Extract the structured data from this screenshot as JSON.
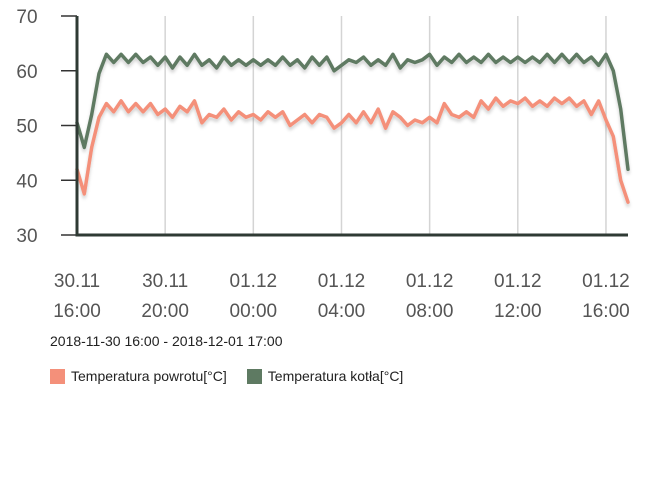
{
  "chart_data": {
    "type": "line",
    "title": "",
    "xlabel": "",
    "ylabel": "",
    "ylim": [
      30,
      70
    ],
    "y_ticks": [
      30,
      40,
      50,
      60,
      70
    ],
    "x_range": [
      "2018-11-30 16:00",
      "2018-12-01 17:00"
    ],
    "x_ticks": [
      {
        "at": "2018-11-30 16:00",
        "line1": "30.11",
        "line2": "16:00"
      },
      {
        "at": "2018-11-30 20:00",
        "line1": "30.11",
        "line2": "20:00"
      },
      {
        "at": "2018-12-01 00:00",
        "line1": "01.12",
        "line2": "00:00"
      },
      {
        "at": "2018-12-01 04:00",
        "line1": "01.12",
        "line2": "04:00"
      },
      {
        "at": "2018-12-01 08:00",
        "line1": "01.12",
        "line2": "08:00"
      },
      {
        "at": "2018-12-01 12:00",
        "line1": "01.12",
        "line2": "12:00"
      },
      {
        "at": "2018-12-01 16:00",
        "line1": "01.12",
        "line2": "16:00"
      }
    ],
    "grid": "vertical",
    "legend_position": "bottom-left",
    "series": [
      {
        "name": "Temperatura powrotu[°C]",
        "color": "#f4907a",
        "points": [
          [
            "2018-11-30 16:00",
            42
          ],
          [
            "2018-11-30 16:20",
            37.5
          ],
          [
            "2018-11-30 16:40",
            46
          ],
          [
            "2018-11-30 17:00",
            51.5
          ],
          [
            "2018-11-30 17:20",
            54
          ],
          [
            "2018-11-30 17:40",
            52.5
          ],
          [
            "2018-11-30 18:00",
            54.5
          ],
          [
            "2018-11-30 18:20",
            52.5
          ],
          [
            "2018-11-30 18:40",
            54
          ],
          [
            "2018-11-30 19:00",
            52.5
          ],
          [
            "2018-11-30 19:20",
            54
          ],
          [
            "2018-11-30 19:40",
            52
          ],
          [
            "2018-11-30 20:00",
            53
          ],
          [
            "2018-11-30 20:20",
            51.5
          ],
          [
            "2018-11-30 20:40",
            53.5
          ],
          [
            "2018-11-30 21:00",
            52.5
          ],
          [
            "2018-11-30 21:20",
            54.5
          ],
          [
            "2018-11-30 21:40",
            50.5
          ],
          [
            "2018-11-30 22:00",
            52
          ],
          [
            "2018-11-30 22:20",
            51.5
          ],
          [
            "2018-11-30 22:40",
            53
          ],
          [
            "2018-11-30 23:00",
            51
          ],
          [
            "2018-11-30 23:20",
            52.5
          ],
          [
            "2018-11-30 23:40",
            51.5
          ],
          [
            "2018-12-01 00:00",
            52
          ],
          [
            "2018-12-01 00:20",
            51
          ],
          [
            "2018-12-01 00:40",
            52.5
          ],
          [
            "2018-12-01 01:00",
            51.5
          ],
          [
            "2018-12-01 01:20",
            52.5
          ],
          [
            "2018-12-01 01:40",
            50
          ],
          [
            "2018-12-01 02:00",
            51
          ],
          [
            "2018-12-01 02:20",
            52
          ],
          [
            "2018-12-01 02:40",
            50.5
          ],
          [
            "2018-12-01 03:00",
            52
          ],
          [
            "2018-12-01 03:20",
            51.5
          ],
          [
            "2018-12-01 03:40",
            49.5
          ],
          [
            "2018-12-01 04:00",
            50.5
          ],
          [
            "2018-12-01 04:20",
            52
          ],
          [
            "2018-12-01 04:40",
            50.5
          ],
          [
            "2018-12-01 05:00",
            52.5
          ],
          [
            "2018-12-01 05:20",
            50.5
          ],
          [
            "2018-12-01 05:40",
            53
          ],
          [
            "2018-12-01 06:00",
            49.5
          ],
          [
            "2018-12-01 06:20",
            52.5
          ],
          [
            "2018-12-01 06:40",
            51.5
          ],
          [
            "2018-12-01 07:00",
            50
          ],
          [
            "2018-12-01 07:20",
            51
          ],
          [
            "2018-12-01 07:40",
            50.5
          ],
          [
            "2018-12-01 08:00",
            51.5
          ],
          [
            "2018-12-01 08:20",
            50.5
          ],
          [
            "2018-12-01 08:40",
            54
          ],
          [
            "2018-12-01 09:00",
            52
          ],
          [
            "2018-12-01 09:20",
            51.5
          ],
          [
            "2018-12-01 09:40",
            52.5
          ],
          [
            "2018-12-01 10:00",
            51.5
          ],
          [
            "2018-12-01 10:20",
            54.5
          ],
          [
            "2018-12-01 10:40",
            53
          ],
          [
            "2018-12-01 11:00",
            55
          ],
          [
            "2018-12-01 11:20",
            53.5
          ],
          [
            "2018-12-01 11:40",
            54.5
          ],
          [
            "2018-12-01 12:00",
            54
          ],
          [
            "2018-12-01 12:20",
            55
          ],
          [
            "2018-12-01 12:40",
            53.5
          ],
          [
            "2018-12-01 13:00",
            54.5
          ],
          [
            "2018-12-01 13:20",
            53.5
          ],
          [
            "2018-12-01 13:40",
            55
          ],
          [
            "2018-12-01 14:00",
            54
          ],
          [
            "2018-12-01 14:20",
            55
          ],
          [
            "2018-12-01 14:40",
            53.5
          ],
          [
            "2018-12-01 15:00",
            54.5
          ],
          [
            "2018-12-01 15:20",
            52
          ],
          [
            "2018-12-01 15:40",
            54.5
          ],
          [
            "2018-12-01 16:00",
            51
          ],
          [
            "2018-12-01 16:20",
            48
          ],
          [
            "2018-12-01 16:40",
            40
          ],
          [
            "2018-12-01 17:00",
            36
          ]
        ]
      },
      {
        "name": "Temperatura kotła[°C]",
        "color": "#5e7a62",
        "points": [
          [
            "2018-11-30 16:00",
            50.5
          ],
          [
            "2018-11-30 16:20",
            46
          ],
          [
            "2018-11-30 16:40",
            52
          ],
          [
            "2018-11-30 17:00",
            59.5
          ],
          [
            "2018-11-30 17:20",
            63
          ],
          [
            "2018-11-30 17:40",
            61.5
          ],
          [
            "2018-11-30 18:00",
            63
          ],
          [
            "2018-11-30 18:20",
            61.5
          ],
          [
            "2018-11-30 18:40",
            63
          ],
          [
            "2018-11-30 19:00",
            61.5
          ],
          [
            "2018-11-30 19:20",
            62.5
          ],
          [
            "2018-11-30 19:40",
            61
          ],
          [
            "2018-11-30 20:00",
            62.5
          ],
          [
            "2018-11-30 20:20",
            60.5
          ],
          [
            "2018-11-30 20:40",
            62.5
          ],
          [
            "2018-11-30 21:00",
            61
          ],
          [
            "2018-11-30 21:20",
            63
          ],
          [
            "2018-11-30 21:40",
            61
          ],
          [
            "2018-11-30 22:00",
            62
          ],
          [
            "2018-11-30 22:20",
            60.5
          ],
          [
            "2018-11-30 22:40",
            62.5
          ],
          [
            "2018-11-30 23:00",
            61
          ],
          [
            "2018-11-30 23:20",
            62
          ],
          [
            "2018-11-30 23:40",
            61
          ],
          [
            "2018-12-01 00:00",
            62
          ],
          [
            "2018-12-01 00:20",
            61
          ],
          [
            "2018-12-01 00:40",
            62
          ],
          [
            "2018-12-01 01:00",
            61
          ],
          [
            "2018-12-01 01:20",
            62.5
          ],
          [
            "2018-12-01 01:40",
            61
          ],
          [
            "2018-12-01 02:00",
            62
          ],
          [
            "2018-12-01 02:20",
            60.5
          ],
          [
            "2018-12-01 02:40",
            62.5
          ],
          [
            "2018-12-01 03:00",
            61
          ],
          [
            "2018-12-01 03:20",
            62.5
          ],
          [
            "2018-12-01 03:40",
            60
          ],
          [
            "2018-12-01 04:00",
            61
          ],
          [
            "2018-12-01 04:20",
            62
          ],
          [
            "2018-12-01 04:40",
            61.5
          ],
          [
            "2018-12-01 05:00",
            62.5
          ],
          [
            "2018-12-01 05:20",
            61
          ],
          [
            "2018-12-01 05:40",
            62
          ],
          [
            "2018-12-01 06:00",
            61
          ],
          [
            "2018-12-01 06:20",
            63
          ],
          [
            "2018-12-01 06:40",
            60.5
          ],
          [
            "2018-12-01 07:00",
            62
          ],
          [
            "2018-12-01 07:20",
            61.5
          ],
          [
            "2018-12-01 07:40",
            62
          ],
          [
            "2018-12-01 08:00",
            63
          ],
          [
            "2018-12-01 08:20",
            61
          ],
          [
            "2018-12-01 08:40",
            62.5
          ],
          [
            "2018-12-01 09:00",
            61.5
          ],
          [
            "2018-12-01 09:20",
            63
          ],
          [
            "2018-12-01 09:40",
            61.5
          ],
          [
            "2018-12-01 10:00",
            62.5
          ],
          [
            "2018-12-01 10:20",
            61.5
          ],
          [
            "2018-12-01 10:40",
            63
          ],
          [
            "2018-12-01 11:00",
            61.5
          ],
          [
            "2018-12-01 11:20",
            62.5
          ],
          [
            "2018-12-01 11:40",
            61.5
          ],
          [
            "2018-12-01 12:00",
            62.5
          ],
          [
            "2018-12-01 12:20",
            61.5
          ],
          [
            "2018-12-01 12:40",
            62.5
          ],
          [
            "2018-12-01 13:00",
            61.5
          ],
          [
            "2018-12-01 13:20",
            63
          ],
          [
            "2018-12-01 13:40",
            61.5
          ],
          [
            "2018-12-01 14:00",
            63
          ],
          [
            "2018-12-01 14:20",
            61.5
          ],
          [
            "2018-12-01 14:40",
            63
          ],
          [
            "2018-12-01 15:00",
            61.5
          ],
          [
            "2018-12-01 15:20",
            62.5
          ],
          [
            "2018-12-01 15:40",
            61
          ],
          [
            "2018-12-01 16:00",
            63
          ],
          [
            "2018-12-01 16:20",
            60
          ],
          [
            "2018-12-01 16:40",
            53
          ],
          [
            "2018-12-01 17:00",
            42
          ]
        ]
      }
    ]
  },
  "range_label": "2018-11-30 16:00 - 2018-12-01 17:00"
}
